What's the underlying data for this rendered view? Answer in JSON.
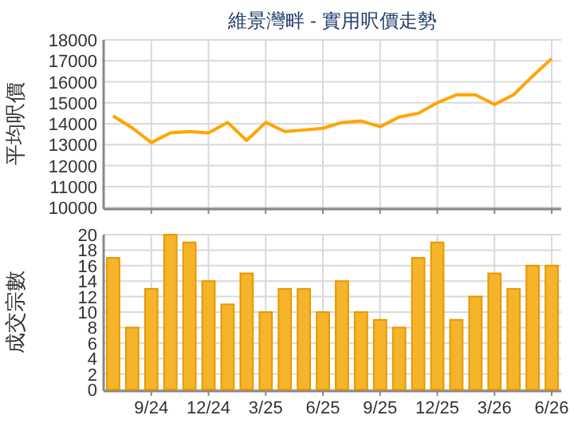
{
  "chart_data": [
    {
      "type": "line",
      "title": "維景灣畔 - 實用呎價走勢",
      "ylabel": "平均呎價",
      "categories": [
        null,
        null,
        null,
        null,
        null,
        null,
        null,
        null,
        null,
        null,
        null,
        null,
        null,
        null,
        null,
        null,
        null,
        null,
        null,
        null,
        null,
        null,
        null,
        null
      ],
      "series": [
        {
          "color": "#ffa500",
          "values": [
            14370,
            13800,
            13100,
            13560,
            13630,
            13560,
            14060,
            13200,
            14060,
            13630,
            13700,
            13780,
            14060,
            14130,
            13860,
            14320,
            14500,
            15000,
            15380,
            15380,
            14920,
            15380,
            16270,
            17110
          ]
        }
      ],
      "ylim": [
        10000,
        18000
      ],
      "yticks": [
        10000,
        11000,
        12000,
        13000,
        14000,
        15000,
        16000,
        17000,
        18000
      ],
      "grid": true,
      "tick_labels": "y",
      "marker": "none"
    },
    {
      "type": "bar",
      "ylabel": "成交宗數",
      "categories": [
        null,
        null,
        "9/24",
        null,
        null,
        "12/24",
        null,
        null,
        "3/25",
        null,
        null,
        "6/25",
        null,
        null,
        "9/25",
        null,
        null,
        "12/25",
        null,
        null,
        "3/26",
        null,
        null,
        "6/26"
      ],
      "series": [
        {
          "color": "#f5b42a",
          "values": [
            17,
            8,
            13,
            20,
            19,
            14,
            11,
            15,
            10,
            13,
            13,
            10,
            14,
            10,
            9,
            8,
            17,
            19,
            9,
            12,
            15,
            13,
            16,
            16
          ]
        }
      ],
      "ylim": [
        0,
        20
      ],
      "yticks": [
        0,
        2,
        4,
        6,
        8,
        10,
        12,
        14,
        16,
        18,
        20
      ],
      "grid": true
    }
  ]
}
